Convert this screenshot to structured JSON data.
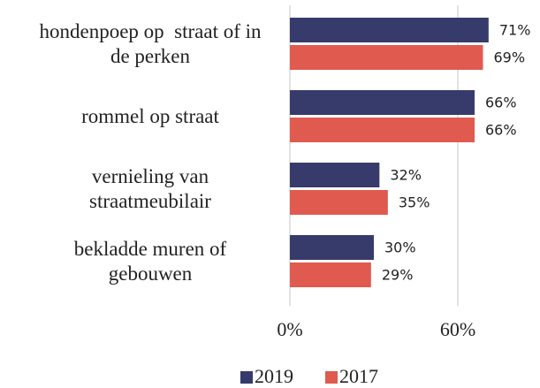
{
  "chart_data": {
    "type": "barh",
    "categories": [
      "hondenpoep op  straat of in de perken",
      "rommel op straat",
      "vernieling van straatmeubilair",
      "bekladde muren of gebouwen"
    ],
    "series": [
      {
        "name": "2019",
        "color": "#363b6b",
        "values": [
          71,
          66,
          32,
          30
        ],
        "value_labels": [
          "71%",
          "66%",
          "32%",
          "30%"
        ]
      },
      {
        "name": "2017",
        "color": "#e05a4f",
        "values": [
          69,
          66,
          35,
          29
        ],
        "value_labels": [
          "69%",
          "66%",
          "35%",
          "29%"
        ]
      }
    ],
    "xlim": [
      0,
      88
    ],
    "xticks": [
      {
        "value": 0,
        "label": "0%"
      },
      {
        "value": 60,
        "label": "60%"
      }
    ],
    "grid": true
  }
}
